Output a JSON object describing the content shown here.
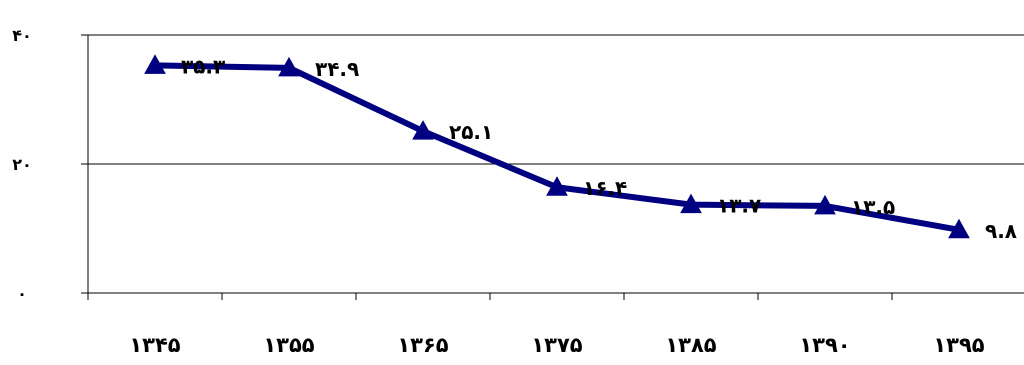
{
  "chart_data": {
    "type": "line",
    "title": "",
    "xlabel": "",
    "ylabel": "",
    "categories": [
      "۱۳۴۵",
      "۱۳۵۵",
      "۱۳۶۵",
      "۱۳۷۵",
      "۱۳۸۵",
      "۱۳۹۰",
      "۱۳۹۵"
    ],
    "values": [
      35.3,
      34.9,
      25.1,
      16.4,
      13.7,
      13.5,
      9.8
    ],
    "data_labels": [
      "۳۵.۳",
      "۳۴.۹",
      "۲۵.۱",
      "۱۶.۴",
      "۱۳.۷",
      "۱۳.۵",
      "۹.۸"
    ],
    "y_ticks": [
      {
        "value": 0,
        "label": "۰"
      },
      {
        "value": 20,
        "label": "۲۰"
      },
      {
        "value": 40,
        "label": "۴۰"
      }
    ],
    "ylim": [
      0,
      40
    ],
    "grid": true,
    "legend": "none",
    "colors": {
      "line": "#000080",
      "marker": "#000080",
      "grid": "#000000"
    }
  }
}
